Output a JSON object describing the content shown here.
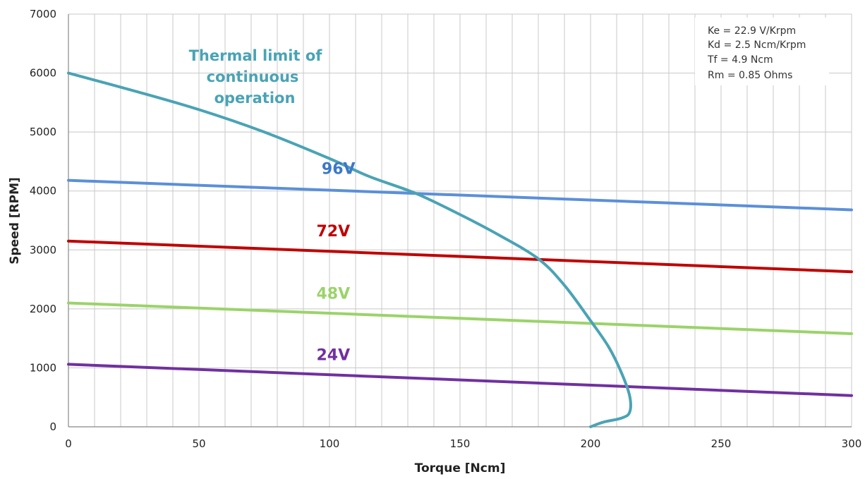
{
  "chart_data": {
    "type": "line",
    "title": "",
    "xlabel": "Torque [Ncm]",
    "ylabel": "Speed [RPM]",
    "xlim": [
      0,
      300
    ],
    "ylim": [
      0,
      7000
    ],
    "x_ticks": [
      0,
      50,
      100,
      150,
      200,
      250,
      300
    ],
    "y_ticks": [
      0,
      1000,
      2000,
      3000,
      4000,
      5000,
      6000,
      7000
    ],
    "x_minor_step": 10,
    "grid": true,
    "legend": "none",
    "series": [
      {
        "name": "96V",
        "color": "#5b8fd9",
        "label_color": "#3c78c8",
        "x": [
          0,
          300
        ],
        "y": [
          4180,
          3680
        ],
        "label_at": [
          97,
          4290
        ]
      },
      {
        "name": "72V",
        "color": "#c00000",
        "label_color": "#c00000",
        "x": [
          0,
          300
        ],
        "y": [
          3150,
          2630
        ],
        "label_at": [
          95,
          3230
        ]
      },
      {
        "name": "48V",
        "color": "#9bd36a",
        "label_color": "#9bd36a",
        "x": [
          0,
          300
        ],
        "y": [
          2100,
          1580
        ],
        "label_at": [
          95,
          2170
        ]
      },
      {
        "name": "24V",
        "color": "#7030a0",
        "label_color": "#7030a0",
        "x": [
          0,
          300
        ],
        "y": [
          1060,
          530
        ],
        "label_at": [
          95,
          1130
        ]
      }
    ],
    "thermal_limit": {
      "name": "Thermal limit of continuous operation",
      "label_lines": [
        "Thermal limit of",
        "continuous",
        "operation"
      ],
      "color": "#4aa3b5",
      "x": [
        0,
        25,
        50,
        75,
        100,
        115,
        133,
        150,
        165,
        180,
        190,
        200,
        207,
        212,
        215,
        215,
        212,
        205,
        200
      ],
      "y": [
        6000,
        5700,
        5380,
        5000,
        4550,
        4250,
        3960,
        3600,
        3250,
        2850,
        2400,
        1800,
        1350,
        900,
        520,
        250,
        150,
        80,
        0
      ]
    },
    "parameters": [
      "Ke = 22.9 V/Krpm",
      "Kd = 2.5 Ncm/Krpm",
      "Tf = 4.9 Ncm",
      "Rm = 0.85 Ohms"
    ]
  }
}
